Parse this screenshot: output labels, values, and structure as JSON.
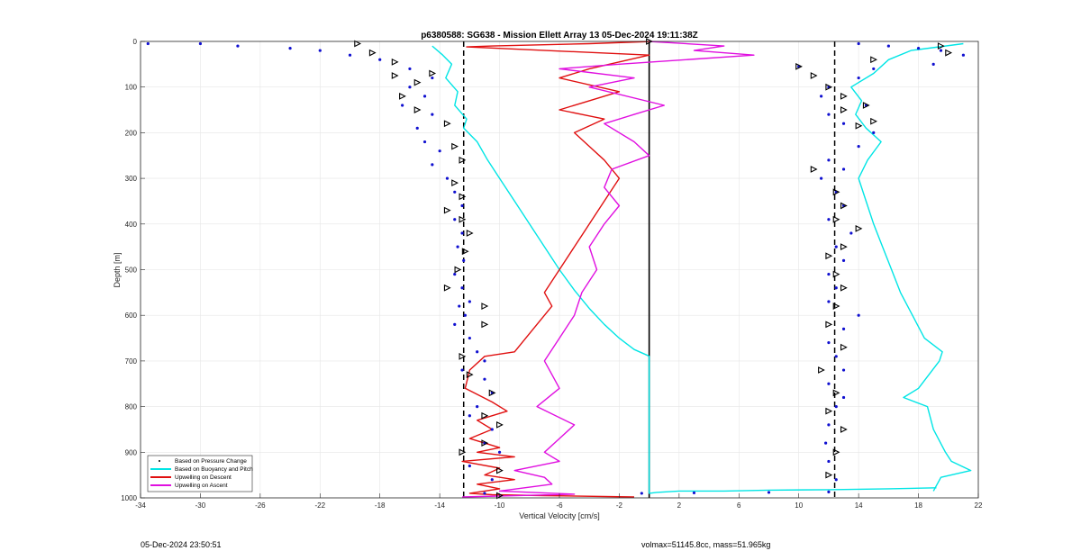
{
  "chart_data": {
    "type": "line",
    "title": "p6380588: SG638 - Mission Ellett Array 13 05-Dec-2024 19:11:38Z",
    "xlabel": "Vertical Velocity [cm/s]",
    "ylabel": "Depth [m]",
    "xlim": [
      -34,
      22
    ],
    "ylim": [
      0,
      1000
    ],
    "y_reversed": true,
    "grid": true,
    "x_ticks": [
      "-34",
      "-30",
      "-26",
      "-22",
      "-18",
      "-14",
      "-10",
      "-6",
      "-2",
      "2",
      "6",
      "10",
      "14",
      "18",
      "22"
    ],
    "y_ticks": [
      "0",
      "100",
      "200",
      "300",
      "400",
      "500",
      "600",
      "700",
      "800",
      "900",
      "1000"
    ],
    "legend_position": "bottom-left",
    "legend": [
      "Based on Pressure Change",
      "Based on Buoyancy and Pitch",
      "Upwelling on Descent",
      "Upwelling on Ascent"
    ],
    "reference_lines": [
      {
        "style": "dashed",
        "color": "#000000",
        "x": -12.4
      },
      {
        "style": "solid",
        "color": "#000000",
        "x": 0
      },
      {
        "style": "dashed",
        "color": "#000000",
        "x": 12.4
      }
    ],
    "series": [
      {
        "name": "Based on Buoyancy and Pitch",
        "color": "#00e5e5",
        "segment": "descent",
        "x": [
          -14.5,
          -13.8,
          -13.2,
          -13.6,
          -12.8,
          -13.0,
          -12.2,
          -12.4,
          -11.5,
          -10.8,
          -10.0,
          -9.0,
          -8.0,
          -7.0,
          -6.0,
          -5.0,
          -4.0,
          -3.0,
          -2.0,
          -1.0,
          -0.1,
          0,
          0,
          0.5,
          2,
          5,
          8,
          12,
          16,
          19.2
        ],
        "y": [
          10,
          30,
          50,
          80,
          110,
          140,
          170,
          190,
          220,
          260,
          300,
          350,
          400,
          450,
          500,
          545,
          585,
          620,
          650,
          675,
          688,
          690,
          990,
          988,
          985,
          985,
          983,
          982,
          980,
          978
        ]
      },
      {
        "name": "Based on Buoyancy and Pitch",
        "color": "#00e5e5",
        "segment": "ascent",
        "x": [
          21.0,
          17.5,
          16.0,
          15.0,
          13.5,
          14.2,
          13.8,
          14.5,
          15.5,
          14.6,
          14.0,
          14.5,
          15.0,
          15.6,
          16.2,
          16.8,
          17.6,
          18.4,
          19.0,
          19.6,
          19.4,
          18.0,
          17.0,
          18.6,
          19.0,
          19.8,
          20.2,
          21.5,
          19.5,
          19.0
        ],
        "y": [
          5,
          20,
          40,
          70,
          100,
          130,
          160,
          190,
          220,
          260,
          300,
          350,
          400,
          450,
          500,
          550,
          600,
          650,
          665,
          680,
          700,
          760,
          780,
          800,
          850,
          900,
          920,
          940,
          955,
          985
        ]
      },
      {
        "name": "Upwelling on Descent",
        "color": "#e01010",
        "x": [
          0.2,
          -4,
          -10.5,
          -12.2,
          0,
          -4,
          -6,
          -2,
          -4,
          -6,
          -3,
          -5,
          -4,
          -3,
          -2,
          -3,
          -4,
          -5,
          -6,
          -7,
          -6.5,
          -7.5,
          -9,
          -11,
          -12,
          -12.3,
          -10.5,
          -9.5,
          -11.5,
          -10.5,
          -12,
          -10,
          -11.5,
          -9,
          -12.5,
          -10,
          -11,
          -9,
          -11.5,
          -10,
          -12,
          -10.5,
          -7,
          -1
        ],
        "y": [
          0,
          5,
          10,
          12,
          30,
          60,
          80,
          110,
          130,
          150,
          170,
          200,
          230,
          260,
          300,
          350,
          400,
          450,
          500,
          550,
          580,
          620,
          680,
          690,
          720,
          760,
          790,
          810,
          830,
          850,
          870,
          890,
          900,
          910,
          920,
          935,
          950,
          960,
          970,
          980,
          990,
          993,
          995,
          998
        ]
      },
      {
        "name": "Upwelling on Ascent",
        "color": "#e010e0",
        "x": [
          0,
          5,
          3,
          7,
          -2,
          -6,
          -1,
          -4,
          1,
          -1,
          -3,
          -1,
          0,
          -2.5,
          -3,
          -2,
          -3,
          -4,
          -3.5,
          -4.5,
          -5,
          -6,
          -7,
          -6.5,
          -6,
          -7.5,
          -5,
          -6,
          -7,
          -6,
          -9,
          -7,
          -6.5,
          -10,
          -5,
          -12.5
        ],
        "y": [
          0,
          10,
          20,
          30,
          50,
          60,
          80,
          100,
          140,
          160,
          180,
          220,
          250,
          280,
          320,
          360,
          400,
          450,
          500,
          550,
          600,
          650,
          700,
          730,
          760,
          800,
          840,
          870,
          900,
          920,
          940,
          955,
          970,
          985,
          992,
          998
        ]
      },
      {
        "name": "Based on Pressure Change",
        "color": "#1010d0",
        "segment": "descent",
        "x": [
          -33.5,
          -30,
          -27.5,
          -24,
          -22,
          -20,
          -18,
          -16,
          -14.5,
          -16,
          -15,
          -16.5,
          -14.5,
          -15.5,
          -15,
          -14,
          -14.5,
          -13.5,
          -13,
          -12.5,
          -13,
          -12.5,
          -12.8,
          -12.4,
          -13,
          -12.5,
          -12,
          -12.7,
          -12.3,
          -13,
          -12,
          -11.5,
          -11,
          -12.5,
          -11,
          -10.5,
          -11.5,
          -12,
          -10.5,
          -11,
          -10,
          -12,
          -10.5,
          -11
        ],
        "y": [
          5,
          5,
          10,
          15,
          20,
          30,
          40,
          60,
          80,
          100,
          120,
          140,
          160,
          190,
          220,
          240,
          270,
          300,
          330,
          360,
          390,
          420,
          450,
          480,
          510,
          540,
          570,
          580,
          600,
          620,
          650,
          680,
          700,
          720,
          740,
          770,
          800,
          820,
          850,
          880,
          900,
          930,
          960,
          990
        ]
      },
      {
        "name": "Based on Pressure Change",
        "color": "#1010d0",
        "segment": "ascent",
        "x": [
          -0.5,
          3,
          8,
          12,
          14,
          16,
          18,
          19.5,
          21,
          19,
          15,
          14,
          12,
          10,
          11.5,
          14.5,
          12,
          13,
          15,
          14,
          12,
          13,
          11.5,
          12.5,
          13,
          12,
          13.5,
          12.5,
          13,
          12,
          12.5,
          12,
          14,
          13,
          12,
          12.5,
          13,
          12,
          13,
          12.5,
          12,
          11.8,
          12,
          12.5
        ],
        "y": [
          990,
          989,
          988,
          987,
          5,
          10,
          15,
          20,
          30,
          50,
          60,
          80,
          100,
          55,
          120,
          140,
          160,
          180,
          200,
          230,
          260,
          280,
          300,
          330,
          360,
          390,
          420,
          450,
          480,
          510,
          540,
          570,
          600,
          630,
          660,
          690,
          720,
          750,
          780,
          800,
          840,
          880,
          920,
          960
        ]
      }
    ],
    "markers": [
      {
        "series": "Based on Pressure Change",
        "style": "triangle",
        "x": [
          -19.5,
          -18.5,
          -17,
          -14.5,
          -17,
          -15.5,
          -16.5,
          -15.5,
          -13.5,
          -13,
          -12.5,
          -13,
          -12.5,
          -13.5,
          -12.5,
          -12,
          -12.3,
          -12.8,
          -13.5,
          -11,
          -11,
          -12.5,
          -12,
          -10.5,
          -11,
          -10,
          -11,
          -12.5,
          -10,
          -10
        ],
        "y": [
          5,
          25,
          45,
          70,
          75,
          90,
          120,
          150,
          180,
          230,
          260,
          310,
          340,
          370,
          390,
          420,
          460,
          500,
          540,
          580,
          620,
          690,
          730,
          770,
          820,
          840,
          880,
          900,
          940,
          995
        ]
      },
      {
        "series": "Based on Pressure Change",
        "style": "triangle",
        "x": [
          0,
          19.5,
          20,
          15,
          10,
          11,
          12,
          13,
          14.5,
          13,
          15,
          14,
          11,
          12.5,
          13,
          12.5,
          14,
          13,
          12,
          12.5,
          13,
          12.5,
          12,
          13,
          11.5,
          12.5,
          12,
          13,
          12.5,
          12
        ],
        "y": [
          0,
          10,
          25,
          40,
          55,
          75,
          100,
          120,
          140,
          150,
          175,
          185,
          280,
          330,
          360,
          390,
          410,
          450,
          470,
          510,
          540,
          580,
          620,
          670,
          720,
          770,
          810,
          850,
          900,
          950
        ]
      }
    ]
  },
  "footer": {
    "date": "05-Dec-2024 23:50:51",
    "mass": "volmax=51145.8cc, mass=51.965kg"
  }
}
